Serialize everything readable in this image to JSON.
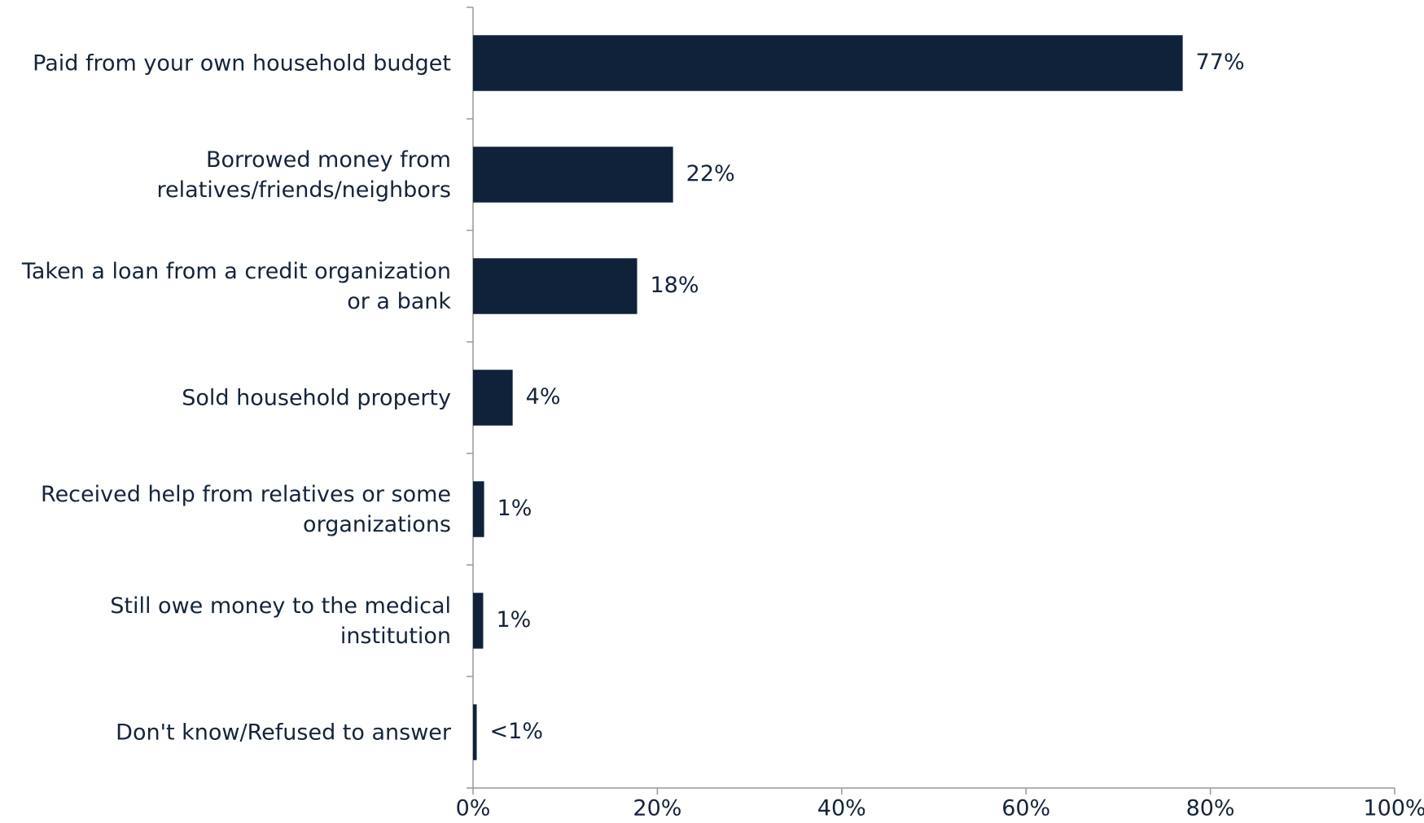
{
  "chart_data": {
    "type": "hbar",
    "categories": [
      "Paid from your own household budget",
      "Borrowed money from relatives/friends/neighbors",
      "Taken a loan from a credit organization or a bank",
      "Sold household property",
      "Received help from relatives or some organizations",
      "Still owe money to the medical institution",
      "Don't know/Refused to answer"
    ],
    "values": [
      77,
      21.7,
      17.8,
      4.3,
      1.2,
      1.1,
      0.4
    ],
    "value_labels": [
      "77%",
      "22%",
      "18%",
      "4%",
      "1%",
      "1%",
      "<1%"
    ],
    "color": "#0f2239",
    "xlim": [
      0,
      100
    ],
    "xticks": [
      {
        "value": 0,
        "label": "0%"
      },
      {
        "value": 20,
        "label": "20%"
      },
      {
        "value": 40,
        "label": "40%"
      },
      {
        "value": 60,
        "label": "60%"
      },
      {
        "value": 80,
        "label": "80%"
      },
      {
        "value": 100,
        "label": "100%"
      }
    ]
  }
}
